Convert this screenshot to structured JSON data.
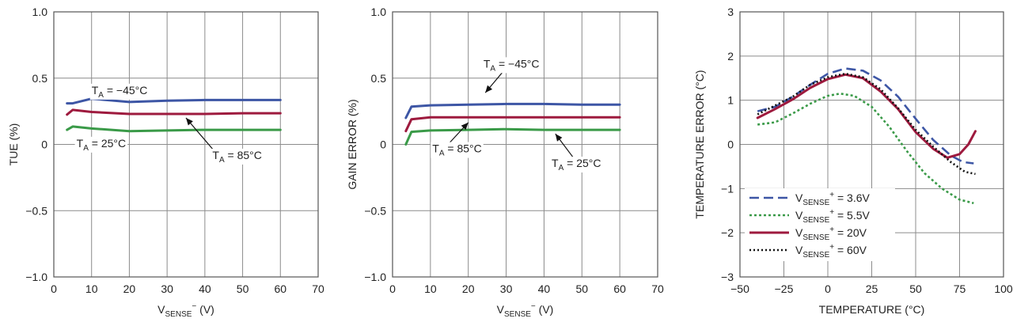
{
  "colors": {
    "blue": "#3d56a5",
    "green": "#3a9a48",
    "red": "#9e1a3e",
    "black": "#111111",
    "grid": "#8c8c8c"
  },
  "chart_data": [
    {
      "type": "line",
      "xlabel": {
        "main": "V",
        "sub": "SENSE",
        "sup": "−",
        "unit": " (V)"
      },
      "ylabel": "TUE (%)",
      "xlim": [
        0,
        70
      ],
      "ylim": [
        -1.0,
        1.0
      ],
      "xticks": [
        "0",
        "10",
        "20",
        "30",
        "40",
        "50",
        "60",
        "70"
      ],
      "yticks": [
        "−1.0",
        "−0.5",
        "0",
        "0.5",
        "1.0"
      ],
      "xtick_values": [
        0,
        10,
        20,
        30,
        40,
        50,
        60,
        70
      ],
      "ytick_values": [
        -1.0,
        -0.5,
        0,
        0.5,
        1.0
      ],
      "series": [
        {
          "label": "T_A = −45°C",
          "color": "blue",
          "style": "solid",
          "points": [
            [
              3.5,
              0.31
            ],
            [
              5,
              0.31
            ],
            [
              10,
              0.345
            ],
            [
              20,
              0.32
            ],
            [
              30,
              0.33
            ],
            [
              40,
              0.335
            ],
            [
              50,
              0.335
            ],
            [
              60,
              0.335
            ]
          ]
        },
        {
          "label": "T_A = 85°C",
          "color": "red",
          "style": "solid",
          "points": [
            [
              3.5,
              0.225
            ],
            [
              5,
              0.26
            ],
            [
              10,
              0.245
            ],
            [
              20,
              0.23
            ],
            [
              30,
              0.23
            ],
            [
              40,
              0.23
            ],
            [
              50,
              0.235
            ],
            [
              60,
              0.235
            ]
          ]
        },
        {
          "label": "T_A = 25°C",
          "color": "green",
          "style": "solid",
          "points": [
            [
              3.5,
              0.11
            ],
            [
              5,
              0.135
            ],
            [
              10,
              0.12
            ],
            [
              20,
              0.1
            ],
            [
              30,
              0.105
            ],
            [
              40,
              0.11
            ],
            [
              50,
              0.11
            ],
            [
              60,
              0.11
            ]
          ]
        }
      ],
      "annotations": [
        {
          "main": "T",
          "sub": "A",
          "rest": " = −45°C",
          "at": [
            10,
            0.38
          ]
        },
        {
          "main": "T",
          "sub": "A",
          "rest": " = 25°C",
          "at": [
            6,
            -0.02
          ]
        },
        {
          "main": "T",
          "sub": "A",
          "rest": " = 85°C",
          "at": [
            42,
            -0.11
          ],
          "arrow_from": [
            42.5,
            -0.05
          ],
          "arrow_to": [
            35,
            0.2
          ]
        }
      ]
    },
    {
      "type": "line",
      "xlabel": {
        "main": "V",
        "sub": "SENSE",
        "sup": "−",
        "unit": " (V)"
      },
      "ylabel": "GAIN ERROR (%)",
      "xlim": [
        0,
        70
      ],
      "ylim": [
        -1.0,
        1.0
      ],
      "xticks": [
        "0",
        "10",
        "20",
        "30",
        "40",
        "50",
        "60",
        "70"
      ],
      "yticks": [
        "−1.0",
        "−0.5",
        "0",
        "0.5",
        "1.0"
      ],
      "xtick_values": [
        0,
        10,
        20,
        30,
        40,
        50,
        60,
        70
      ],
      "ytick_values": [
        -1.0,
        -0.5,
        0,
        0.5,
        1.0
      ],
      "series": [
        {
          "label": "T_A = −45°C",
          "color": "blue",
          "style": "solid",
          "points": [
            [
              3.5,
              0.2
            ],
            [
              5,
              0.285
            ],
            [
              10,
              0.295
            ],
            [
              20,
              0.3
            ],
            [
              30,
              0.305
            ],
            [
              40,
              0.305
            ],
            [
              50,
              0.3
            ],
            [
              60,
              0.3
            ]
          ]
        },
        {
          "label": "T_A = 85°C",
          "color": "red",
          "style": "solid",
          "points": [
            [
              3.5,
              0.1
            ],
            [
              5,
              0.19
            ],
            [
              10,
              0.205
            ],
            [
              20,
              0.205
            ],
            [
              30,
              0.205
            ],
            [
              40,
              0.205
            ],
            [
              50,
              0.205
            ],
            [
              60,
              0.205
            ]
          ]
        },
        {
          "label": "T_A = 25°C",
          "color": "green",
          "style": "solid",
          "points": [
            [
              3.5,
              0.0
            ],
            [
              5,
              0.095
            ],
            [
              10,
              0.105
            ],
            [
              20,
              0.11
            ],
            [
              30,
              0.115
            ],
            [
              40,
              0.11
            ],
            [
              50,
              0.11
            ],
            [
              60,
              0.11
            ]
          ]
        }
      ],
      "annotations": [
        {
          "main": "T",
          "sub": "A",
          "rest": " = −45°C",
          "at": [
            24,
            0.58
          ],
          "arrow_from": [
            29.5,
            0.56
          ],
          "arrow_to": [
            24.5,
            0.39
          ]
        },
        {
          "main": "T",
          "sub": "A",
          "rest": " = 85°C",
          "at": [
            10.5,
            -0.06
          ],
          "arrow_from": [
            14,
            -0.02
          ],
          "arrow_to": [
            20,
            0.165
          ]
        },
        {
          "main": "T",
          "sub": "A",
          "rest": " = 25°C",
          "at": [
            42,
            -0.17
          ],
          "arrow_from": [
            48,
            -0.11
          ],
          "arrow_to": [
            43,
            0.08
          ]
        }
      ]
    },
    {
      "type": "line",
      "xlabel": {
        "main": "TEMPERATURE (°C)"
      },
      "ylabel": "TEMPERATURE ERROR (°C)",
      "xlim": [
        -50,
        100
      ],
      "ylim": [
        -3,
        3
      ],
      "xticks": [
        "−50",
        "−25",
        "0",
        "25",
        "50",
        "75",
        "100"
      ],
      "yticks": [
        "−3",
        "−2",
        "−1",
        "0",
        "1",
        "2",
        "3"
      ],
      "xtick_values": [
        -50,
        -25,
        0,
        25,
        50,
        75,
        100
      ],
      "ytick_values": [
        -3,
        -2,
        -1,
        0,
        1,
        2,
        3
      ],
      "series": [
        {
          "label": "3.6V",
          "color": "blue",
          "style": "dash",
          "points": [
            [
              -40,
              0.75
            ],
            [
              -30,
              0.85
            ],
            [
              -20,
              1.08
            ],
            [
              -10,
              1.35
            ],
            [
              0,
              1.6
            ],
            [
              10,
              1.72
            ],
            [
              20,
              1.67
            ],
            [
              30,
              1.45
            ],
            [
              40,
              1.08
            ],
            [
              50,
              0.58
            ],
            [
              60,
              0.1
            ],
            [
              70,
              -0.25
            ],
            [
              77,
              -0.4
            ],
            [
              83,
              -0.43
            ]
          ]
        },
        {
          "label": "5.5V",
          "color": "green",
          "style": "dot-dense",
          "points": [
            [
              -40,
              0.45
            ],
            [
              -30,
              0.5
            ],
            [
              -20,
              0.7
            ],
            [
              -10,
              0.92
            ],
            [
              0,
              1.1
            ],
            [
              7,
              1.15
            ],
            [
              15,
              1.1
            ],
            [
              25,
              0.85
            ],
            [
              35,
              0.4
            ],
            [
              45,
              -0.15
            ],
            [
              55,
              -0.65
            ],
            [
              65,
              -1.0
            ],
            [
              75,
              -1.25
            ],
            [
              83,
              -1.33
            ]
          ]
        },
        {
          "label": "20V",
          "color": "red",
          "style": "solid",
          "points": [
            [
              -40,
              0.6
            ],
            [
              -30,
              0.8
            ],
            [
              -20,
              1.02
            ],
            [
              -10,
              1.28
            ],
            [
              0,
              1.48
            ],
            [
              10,
              1.58
            ],
            [
              20,
              1.5
            ],
            [
              30,
              1.2
            ],
            [
              40,
              0.8
            ],
            [
              50,
              0.28
            ],
            [
              60,
              -0.1
            ],
            [
              68,
              -0.3
            ],
            [
              75,
              -0.22
            ],
            [
              80,
              0.0
            ],
            [
              84,
              0.3
            ]
          ]
        },
        {
          "label": "60V",
          "color": "black",
          "style": "dot",
          "points": [
            [
              -40,
              0.68
            ],
            [
              -30,
              0.88
            ],
            [
              -20,
              1.08
            ],
            [
              -10,
              1.35
            ],
            [
              0,
              1.52
            ],
            [
              10,
              1.6
            ],
            [
              20,
              1.52
            ],
            [
              30,
              1.25
            ],
            [
              40,
              0.82
            ],
            [
              50,
              0.33
            ],
            [
              60,
              -0.05
            ],
            [
              70,
              -0.4
            ],
            [
              78,
              -0.62
            ],
            [
              84,
              -0.67
            ]
          ]
        }
      ],
      "legend": {
        "placement": "bottom-left",
        "entries": [
          {
            "main": "V",
            "sub": "SENSE",
            "sup": "+",
            "rest": " = 3.6V"
          },
          {
            "main": "V",
            "sub": "SENSE",
            "sup": "+",
            "rest": " = 5.5V"
          },
          {
            "main": "V",
            "sub": "SENSE",
            "sup": "+",
            "rest": " = 20V"
          },
          {
            "main": "V",
            "sub": "SENSE",
            "sup": "+",
            "rest": " = 60V"
          }
        ]
      }
    }
  ]
}
